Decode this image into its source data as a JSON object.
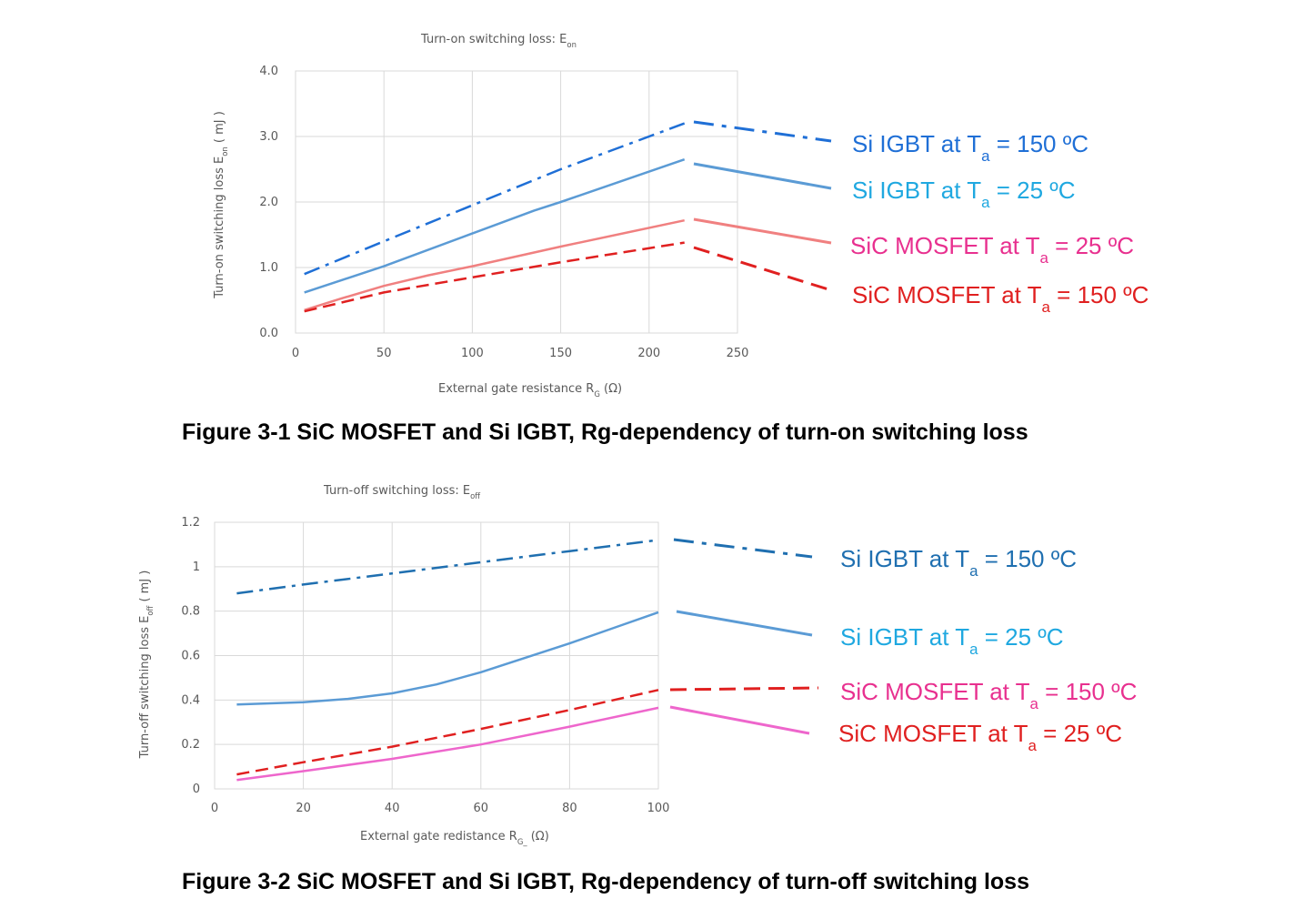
{
  "chart_data": [
    {
      "type": "line",
      "title": "Turn-on switching loss: E",
      "title_sub": "on",
      "xlabel": "External gate resistance R",
      "xlabel_sub": "G",
      "xlabel_suffix": " (Ω)",
      "ylabel": "Turn-on switching loss  E",
      "ylabel_sub": "on",
      "ylabel_suffix": " ( mJ )",
      "xlim": [
        0,
        250
      ],
      "ylim": [
        0,
        4
      ],
      "x_ticks": [
        "0",
        "50",
        "100",
        "150",
        "200",
        "250"
      ],
      "y_ticks": [
        "0.0",
        "1.0",
        "2.0",
        "3.0",
        "4.0"
      ],
      "grid": true,
      "caption": "Figure 3-1    SiC MOSFET and Si IGBT, Rg-dependency of turn-on switching loss",
      "series": [
        {
          "name": "Si IGBT at Ta = 150 ºC",
          "label_main": "Si IGBT at T",
          "label_sub": "a",
          "label_tail": " = 150 ºC",
          "color": "#1f6fd6",
          "label_color": "#1f6fd6",
          "style": "dashdot",
          "x": [
            5,
            50,
            100,
            150,
            220
          ],
          "y": [
            0.9,
            1.4,
            1.95,
            2.5,
            3.2
          ]
        },
        {
          "name": "Si IGBT at Ta = 25 ºC",
          "label_main": "Si IGBT at T",
          "label_sub": "a",
          "label_tail": " = 25 ºC",
          "color": "#5b9bd5",
          "label_color": "#1fa8e0",
          "style": "solid",
          "x": [
            5,
            50,
            100,
            135,
            150,
            220
          ],
          "y": [
            0.62,
            1.02,
            1.52,
            1.87,
            2.0,
            2.65
          ]
        },
        {
          "name": "SiC MOSFET at Ta = 25 ºC",
          "label_main": "SiC MOSFET at T",
          "label_sub": "a",
          "label_tail": " = 25 ºC",
          "color": "#f08080",
          "label_color": "#e8308f",
          "style": "solid",
          "x": [
            5,
            25,
            50,
            75,
            100,
            150,
            220
          ],
          "y": [
            0.35,
            0.52,
            0.72,
            0.88,
            1.02,
            1.32,
            1.72
          ]
        },
        {
          "name": "SiC MOSFET at Ta = 150 ºC",
          "label_main": "SiC MOSFET at T",
          "label_sub": "a",
          "label_tail": " = 150 ºC",
          "color": "#e02020",
          "label_color": "#e02020",
          "style": "dashed",
          "x": [
            5,
            50,
            100,
            150,
            220
          ],
          "y": [
            0.33,
            0.62,
            0.85,
            1.08,
            1.38
          ]
        }
      ]
    },
    {
      "type": "line",
      "title": "Turn-off switching loss: E",
      "title_sub": "off",
      "xlabel": "External gate redistance R",
      "xlabel_sub": "G_",
      "xlabel_suffix": " (Ω)",
      "ylabel": "Turn-off switching loss  E",
      "ylabel_sub": "off",
      "ylabel_suffix": " ( mJ )",
      "xlim": [
        0,
        100
      ],
      "ylim": [
        0,
        1.2
      ],
      "x_ticks": [
        "0",
        "20",
        "40",
        "60",
        "80",
        "100"
      ],
      "y_ticks": [
        "0",
        "0.2",
        "0.4",
        "0.6",
        "0.8",
        "1",
        "1.2"
      ],
      "grid": true,
      "caption": "Figure 3-2    SiC MOSFET and Si IGBT, Rg-dependency of turn-off switching loss",
      "series": [
        {
          "name": "Si IGBT at Ta = 150 ºC",
          "label_main": "Si IGBT at T",
          "label_sub": "a",
          "label_tail": " = 150 ºC",
          "color": "#1f6fb0",
          "label_color": "#1f6fb0",
          "style": "dashdot",
          "x": [
            5,
            20,
            40,
            60,
            80,
            100
          ],
          "y": [
            0.88,
            0.92,
            0.97,
            1.02,
            1.07,
            1.12
          ]
        },
        {
          "name": "Si IGBT at Ta = 25 ºC",
          "label_main": "Si IGBT at T",
          "label_sub": "a",
          "label_tail": " = 25 ºC",
          "color": "#5b9bd5",
          "label_color": "#1fa8e0",
          "style": "solid",
          "x": [
            5,
            20,
            30,
            40,
            50,
            60,
            70,
            80,
            90,
            100
          ],
          "y": [
            0.38,
            0.39,
            0.405,
            0.43,
            0.47,
            0.525,
            0.59,
            0.655,
            0.725,
            0.795
          ]
        },
        {
          "name": "SiC MOSFET at Ta = 150 ºC",
          "label_main": "SiC MOSFET at T",
          "label_sub": "a",
          "label_tail": " = 150 ºC",
          "color": "#e02020",
          "label_color": "#e8308f",
          "style": "dashed",
          "x": [
            5,
            20,
            40,
            60,
            80,
            100
          ],
          "y": [
            0.065,
            0.12,
            0.19,
            0.27,
            0.355,
            0.445
          ]
        },
        {
          "name": "SiC MOSFET at Ta = 25 ºC",
          "label_main": "SiC MOSFET at T",
          "label_sub": "a",
          "label_tail": " = 25 ºC",
          "color": "#ee66cc",
          "label_color": "#e02020",
          "style": "solid",
          "x": [
            5,
            20,
            40,
            60,
            80,
            100
          ],
          "y": [
            0.04,
            0.08,
            0.135,
            0.2,
            0.28,
            0.365
          ]
        }
      ]
    }
  ]
}
